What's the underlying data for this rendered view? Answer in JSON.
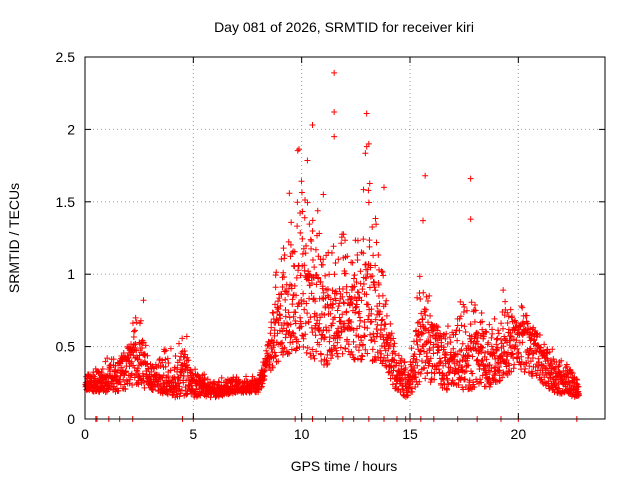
{
  "chart_data": {
    "type": "scatter",
    "title": "Day 081 of 2026, SRMTID for receiver kiri",
    "xlabel": "GPS time / hours",
    "ylabel": "SRMTID / TECUs",
    "xlim": [
      0,
      24
    ],
    "ylim": [
      0,
      2.5
    ],
    "xticks": [
      0,
      5,
      10,
      15,
      20
    ],
    "yticks": [
      0,
      0.5,
      1,
      1.5,
      2,
      2.5
    ],
    "ytick_labels": [
      "0",
      "0.5",
      "1",
      "1.5",
      "2",
      "2.5"
    ],
    "grid": true,
    "marker": "+",
    "series_color": "#ff0000",
    "envelope": {
      "description": "approximate estimated activity envelope (hour, lower, center, upper) used to reproduce the point cloud",
      "hours": [
        0.0,
        0.5,
        1.0,
        2.0,
        2.5,
        3.0,
        4.0,
        4.5,
        5.0,
        6.0,
        7.0,
        8.0,
        8.5,
        9.0,
        9.5,
        10.0,
        10.5,
        11.0,
        11.5,
        12.0,
        12.5,
        13.0,
        13.5,
        14.0,
        14.5,
        15.0,
        15.5,
        16.0,
        16.5,
        17.0,
        17.5,
        18.0,
        18.5,
        19.0,
        19.5,
        20.0,
        20.5,
        21.0,
        21.5,
        22.0,
        22.5,
        22.8
      ],
      "lower": [
        0.2,
        0.18,
        0.18,
        0.2,
        0.22,
        0.2,
        0.15,
        0.15,
        0.15,
        0.15,
        0.18,
        0.18,
        0.3,
        0.4,
        0.45,
        0.5,
        0.4,
        0.35,
        0.4,
        0.45,
        0.4,
        0.4,
        0.4,
        0.3,
        0.15,
        0.15,
        0.25,
        0.25,
        0.2,
        0.2,
        0.2,
        0.2,
        0.2,
        0.25,
        0.3,
        0.35,
        0.3,
        0.25,
        0.2,
        0.15,
        0.15,
        0.15
      ],
      "center": [
        0.25,
        0.25,
        0.28,
        0.4,
        0.5,
        0.3,
        0.25,
        0.35,
        0.25,
        0.2,
        0.22,
        0.22,
        0.45,
        0.8,
        0.85,
        1.0,
        0.9,
        0.85,
        0.75,
        0.8,
        0.75,
        0.95,
        0.8,
        0.5,
        0.3,
        0.28,
        0.6,
        0.6,
        0.45,
        0.4,
        0.45,
        0.55,
        0.4,
        0.45,
        0.55,
        0.6,
        0.55,
        0.45,
        0.35,
        0.3,
        0.25,
        0.2
      ],
      "upper": [
        0.3,
        0.4,
        0.42,
        0.55,
        0.82,
        0.45,
        0.5,
        0.58,
        0.35,
        0.28,
        0.3,
        0.3,
        0.6,
        1.55,
        1.6,
        2.05,
        1.6,
        1.4,
        1.3,
        1.6,
        1.35,
        2.1,
        1.6,
        0.8,
        0.5,
        0.45,
        1.3,
        0.75,
        0.65,
        0.7,
        1.0,
        0.9,
        0.75,
        0.85,
        0.85,
        0.85,
        0.75,
        0.6,
        0.5,
        0.45,
        0.35,
        0.3
      ]
    },
    "zero_points_hours": [
      0.5,
      0.55,
      1.1,
      1.6,
      2.2,
      4.5,
      5.0,
      9.7,
      10.0,
      10.5,
      11.1,
      11.9,
      12.4,
      13.1,
      13.8,
      14.4,
      14.8,
      15.0,
      15.5,
      16.1,
      17.2,
      18.1,
      19.2,
      20.0,
      22.7
    ],
    "notable_points": [
      {
        "x": 11.5,
        "y": 2.39
      },
      {
        "x": 11.5,
        "y": 2.12
      },
      {
        "x": 13.0,
        "y": 2.11
      },
      {
        "x": 10.5,
        "y": 2.03
      },
      {
        "x": 11.5,
        "y": 1.95
      },
      {
        "x": 13.1,
        "y": 1.9
      },
      {
        "x": 17.8,
        "y": 1.66
      },
      {
        "x": 15.7,
        "y": 1.68
      },
      {
        "x": 13.8,
        "y": 1.6
      },
      {
        "x": 11.0,
        "y": 1.55
      },
      {
        "x": 17.8,
        "y": 1.38
      },
      {
        "x": 15.6,
        "y": 1.37
      },
      {
        "x": 2.7,
        "y": 0.82
      },
      {
        "x": 19.3,
        "y": 0.89
      },
      {
        "x": 4.7,
        "y": 0.57
      }
    ]
  }
}
